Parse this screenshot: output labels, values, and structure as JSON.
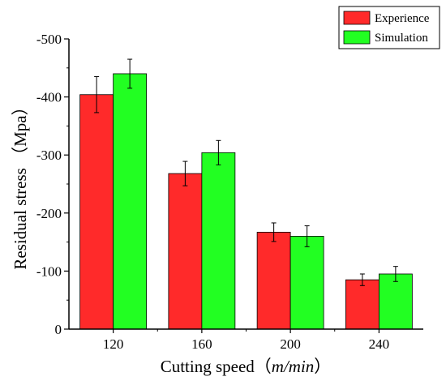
{
  "chart_data": {
    "type": "bar",
    "categories": [
      "120",
      "160",
      "200",
      "240"
    ],
    "series": [
      {
        "name": "Experience",
        "color": "#ff2a2a",
        "values": [
          -404,
          -268,
          -167,
          -85
        ],
        "errors": [
          31,
          21,
          16,
          10
        ]
      },
      {
        "name": "Simulation",
        "color": "#22ff22",
        "values": [
          -440,
          -304,
          -160,
          -95
        ],
        "errors": [
          25,
          21,
          18,
          13
        ]
      }
    ],
    "xlabel": "Cutting speed（m/min）",
    "xlabel_main": "Cutting speed（",
    "xlabel_unit": "m/min",
    "xlabel_close": "）",
    "ylabel": "Residual stress （Mpa）",
    "ylim": [
      0,
      -500
    ],
    "yticks": [
      0,
      -100,
      -200,
      -300,
      -400,
      -500
    ],
    "ytick_labels": [
      "0",
      "-100",
      "-200",
      "-300",
      "-400",
      "-500"
    ],
    "grid": false,
    "legend_position": "top-right",
    "error_bars": true
  }
}
